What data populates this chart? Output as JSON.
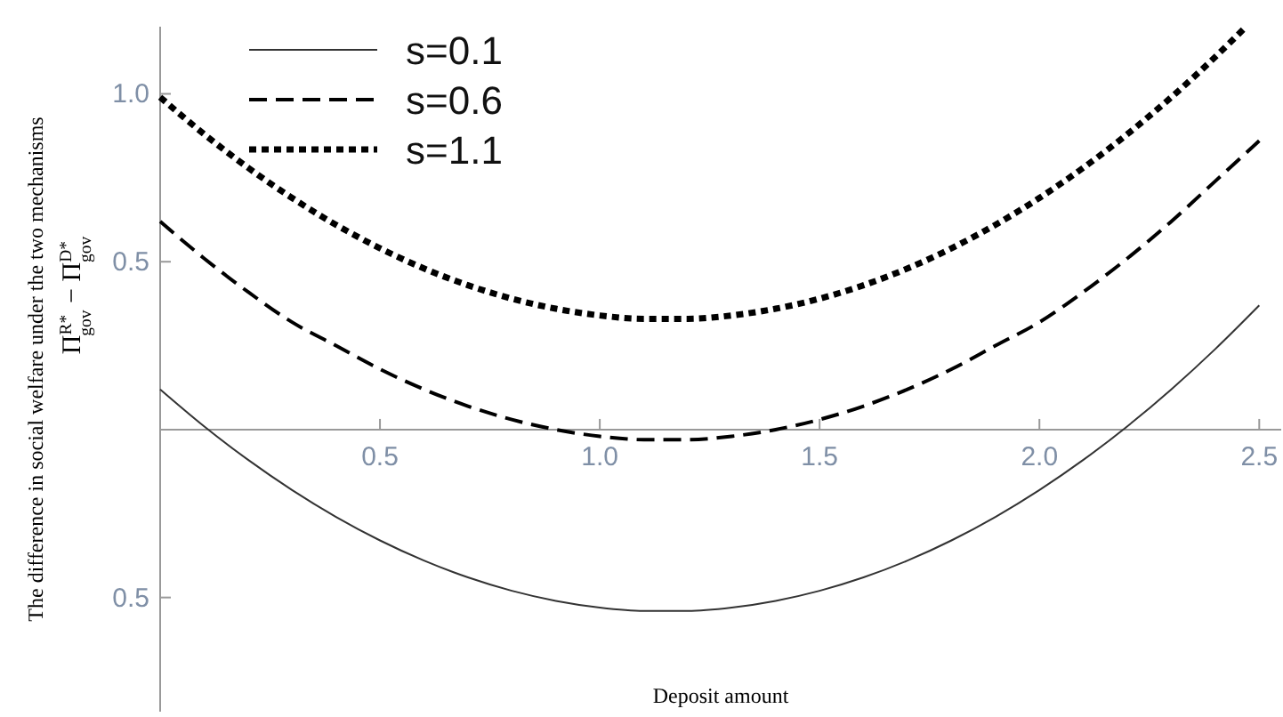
{
  "chart_data": {
    "type": "line",
    "xlabel": "Deposit amount",
    "ylabel": "The difference in social welfare under the two mechanisms",
    "y2label": "Π$^{R*}$$_{gov}$ − Π$^{D*}$$_{gov}$",
    "x": [
      0,
      0.1,
      0.2,
      0.3,
      0.4,
      0.5,
      0.6,
      0.7,
      0.8,
      0.9,
      1.0,
      1.1,
      1.2,
      1.3,
      1.4,
      1.5,
      1.6,
      1.7,
      1.8,
      1.9,
      2.0,
      2.1,
      2.2,
      2.3,
      2.4,
      2.5
    ],
    "series": [
      {
        "name": "s=0.1",
        "color": "#333333",
        "line_style": "solid",
        "values": [
          0.12,
          0.01,
          -0.09,
          -0.18,
          -0.26,
          -0.33,
          -0.39,
          -0.44,
          -0.48,
          -0.51,
          -0.53,
          -0.54,
          -0.54,
          -0.53,
          -0.51,
          -0.48,
          -0.44,
          -0.39,
          -0.33,
          -0.26,
          -0.18,
          -0.09,
          0.01,
          0.12,
          0.24,
          0.37
        ]
      },
      {
        "name": "s=0.6",
        "color": "#000000",
        "line_style": "dashed",
        "values": [
          0.62,
          0.51,
          0.41,
          0.32,
          0.25,
          0.18,
          0.12,
          0.07,
          0.03,
          0,
          -0.02,
          -0.03,
          -0.03,
          -0.02,
          0,
          0.03,
          0.07,
          0.12,
          0.18,
          0.25,
          0.32,
          0.41,
          0.51,
          0.62,
          0.74,
          0.86
        ]
      },
      {
        "name": "s=1.1",
        "color": "#000000",
        "line_style": "dotted",
        "x": [
          0,
          0.1,
          0.2,
          0.3,
          0.4,
          0.5,
          0.6,
          0.7,
          0.8,
          0.9,
          1.0,
          1.1,
          1.2,
          1.3,
          1.4,
          1.5,
          1.6,
          1.7,
          1.8,
          1.9,
          2.0,
          2.1,
          2.2,
          2.3,
          2.4,
          2.47
        ],
        "values": [
          0.99,
          0.88,
          0.78,
          0.69,
          0.61,
          0.54,
          0.48,
          0.43,
          0.39,
          0.36,
          0.34,
          0.33,
          0.33,
          0.34,
          0.36,
          0.39,
          0.43,
          0.48,
          0.54,
          0.61,
          0.69,
          0.78,
          0.88,
          0.99,
          1.11,
          1.2
        ]
      }
    ],
    "xlim": [
      0,
      2.55
    ],
    "ylim": [
      -0.84,
      1.2
    ],
    "xticks": [
      0.5,
      {
        "value": 1.0,
        "label": "1.0"
      },
      1.5,
      {
        "value": 2.0,
        "label": "2.0"
      },
      2.5
    ],
    "yticks": [
      {
        "value": -0.5,
        "label": "0.5"
      },
      0.5,
      {
        "value": 1.0,
        "label": "1.0"
      }
    ],
    "grid": false,
    "legend": "top left"
  }
}
